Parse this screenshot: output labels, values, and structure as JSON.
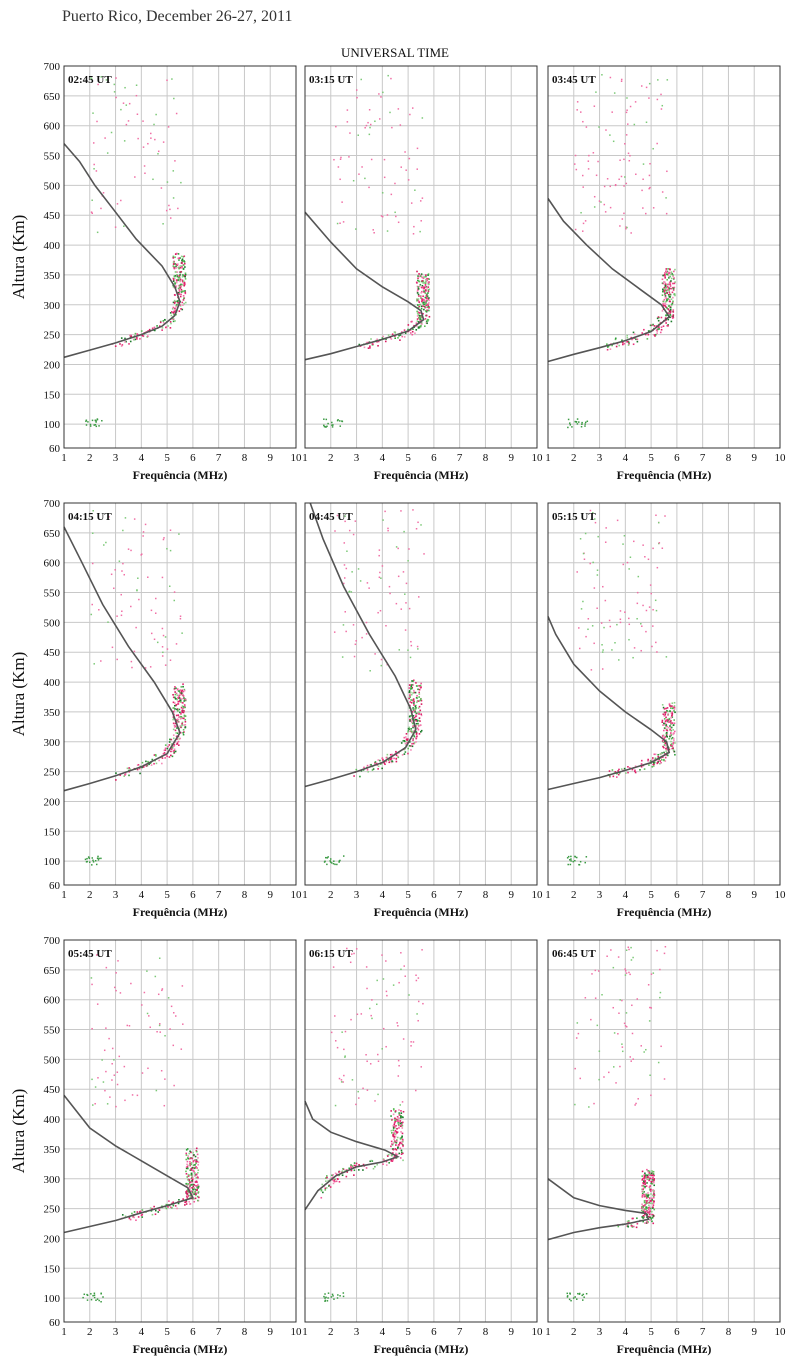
{
  "figure": {
    "title": "Puerto Rico, December 26-27, 2011",
    "subtitle": "UNIVERSAL TIME"
  },
  "chart_data": [
    {
      "type": "scatter",
      "title": "02:45 UT",
      "xlabel": "Frequência (MHz)",
      "ylabel": "Altura (Km)",
      "xlim": [
        1,
        10
      ],
      "ylim": [
        60,
        700
      ],
      "xticks": [
        1,
        2,
        3,
        4,
        5,
        6,
        7,
        8,
        9,
        10
      ],
      "yticks": [
        60,
        100,
        150,
        200,
        250,
        300,
        350,
        400,
        450,
        500,
        550,
        600,
        650,
        700
      ],
      "grid": true,
      "profile": [
        [
          1,
          212
        ],
        [
          2,
          224
        ],
        [
          3,
          236
        ],
        [
          4,
          250
        ],
        [
          4.8,
          264
        ],
        [
          5.3,
          282
        ],
        [
          5.5,
          305
        ],
        [
          5.3,
          330
        ],
        [
          4.8,
          365
        ],
        [
          3.8,
          410
        ],
        [
          3,
          455
        ],
        [
          2.2,
          500
        ],
        [
          1.6,
          540
        ],
        [
          1,
          570
        ]
      ]
    },
    {
      "type": "scatter",
      "title": "03:15 UT",
      "xlabel": "Frequência (MHz)",
      "ylabel": "",
      "xlim": [
        1,
        10
      ],
      "ylim": [
        60,
        700
      ],
      "xticks": [
        1,
        2,
        3,
        4,
        5,
        6,
        7,
        8,
        9,
        10
      ],
      "yticks": [],
      "grid": true,
      "profile": [
        [
          1,
          208
        ],
        [
          2,
          218
        ],
        [
          3,
          230
        ],
        [
          4,
          242
        ],
        [
          5,
          256
        ],
        [
          5.6,
          275
        ],
        [
          5.5,
          290
        ],
        [
          5,
          305
        ],
        [
          4,
          330
        ],
        [
          3,
          360
        ],
        [
          2,
          405
        ],
        [
          1,
          455
        ]
      ]
    },
    {
      "type": "scatter",
      "title": "03:45 UT",
      "xlabel": "Frequência (MHz)",
      "ylabel": "",
      "xlim": [
        1,
        10
      ],
      "ylim": [
        60,
        700
      ],
      "xticks": [
        1,
        2,
        3,
        4,
        5,
        6,
        7,
        8,
        9,
        10
      ],
      "yticks": [],
      "grid": true,
      "profile": [
        [
          1,
          205
        ],
        [
          2,
          217
        ],
        [
          3,
          228
        ],
        [
          4,
          240
        ],
        [
          5,
          255
        ],
        [
          5.7,
          280
        ],
        [
          5.4,
          300
        ],
        [
          4.6,
          325
        ],
        [
          3.5,
          360
        ],
        [
          2.5,
          400
        ],
        [
          1.6,
          440
        ],
        [
          1,
          478
        ]
      ]
    },
    {
      "type": "scatter",
      "title": "04:15 UT",
      "xlabel": "Frequência (MHz)",
      "ylabel": "Altura (Km)",
      "xlim": [
        1,
        10
      ],
      "ylim": [
        60,
        700
      ],
      "xticks": [
        1,
        2,
        3,
        4,
        5,
        6,
        7,
        8,
        9,
        10
      ],
      "yticks": [
        60,
        100,
        150,
        200,
        250,
        300,
        350,
        400,
        450,
        500,
        550,
        600,
        650,
        700
      ],
      "grid": true,
      "profile": [
        [
          1,
          218
        ],
        [
          2,
          230
        ],
        [
          3,
          243
        ],
        [
          4,
          258
        ],
        [
          5,
          280
        ],
        [
          5.5,
          315
        ],
        [
          5.2,
          350
        ],
        [
          4.5,
          400
        ],
        [
          3.5,
          460
        ],
        [
          2.5,
          530
        ],
        [
          1.7,
          600
        ],
        [
          1,
          660
        ]
      ]
    },
    {
      "type": "scatter",
      "title": "04:45 UT",
      "xlabel": "Frequência (MHz)",
      "ylabel": "",
      "xlim": [
        1,
        10
      ],
      "ylim": [
        60,
        700
      ],
      "xticks": [
        1,
        2,
        3,
        4,
        5,
        6,
        7,
        8,
        9,
        10
      ],
      "yticks": [],
      "grid": true,
      "profile": [
        [
          1,
          225
        ],
        [
          2,
          237
        ],
        [
          3,
          250
        ],
        [
          4,
          265
        ],
        [
          4.9,
          290
        ],
        [
          5.3,
          320
        ],
        [
          5.1,
          355
        ],
        [
          4.5,
          410
        ],
        [
          3.5,
          480
        ],
        [
          2.5,
          560
        ],
        [
          1.7,
          640
        ],
        [
          1.2,
          700
        ]
      ]
    },
    {
      "type": "scatter",
      "title": "05:15 UT",
      "xlabel": "Frequência (MHz)",
      "ylabel": "",
      "xlim": [
        1,
        10
      ],
      "ylim": [
        60,
        700
      ],
      "xticks": [
        1,
        2,
        3,
        4,
        5,
        6,
        7,
        8,
        9,
        10
      ],
      "yticks": [],
      "grid": true,
      "profile": [
        [
          1,
          220
        ],
        [
          2,
          230
        ],
        [
          3,
          240
        ],
        [
          4,
          252
        ],
        [
          5,
          265
        ],
        [
          5.7,
          282
        ],
        [
          5.6,
          300
        ],
        [
          5,
          320
        ],
        [
          4,
          350
        ],
        [
          3,
          385
        ],
        [
          2,
          430
        ],
        [
          1.3,
          480
        ],
        [
          1,
          510
        ]
      ]
    },
    {
      "type": "scatter",
      "title": "05:45 UT",
      "xlabel": "Frequência (MHz)",
      "ylabel": "Altura (Km)",
      "xlim": [
        1,
        10
      ],
      "ylim": [
        60,
        700
      ],
      "xticks": [
        1,
        2,
        3,
        4,
        5,
        6,
        7,
        8,
        9,
        10
      ],
      "yticks": [
        60,
        100,
        150,
        200,
        250,
        300,
        350,
        400,
        450,
        500,
        550,
        600,
        650,
        700
      ],
      "grid": true,
      "profile": [
        [
          1,
          210
        ],
        [
          2,
          220
        ],
        [
          3,
          230
        ],
        [
          4,
          243
        ],
        [
          5,
          255
        ],
        [
          6,
          268
        ],
        [
          5.8,
          285
        ],
        [
          5,
          305
        ],
        [
          4,
          330
        ],
        [
          3,
          355
        ],
        [
          2,
          385
        ],
        [
          1,
          440
        ]
      ]
    },
    {
      "type": "scatter",
      "title": "06:15 UT",
      "xlabel": "Frequência (MHz)",
      "ylabel": "",
      "xlim": [
        1,
        10
      ],
      "ylim": [
        60,
        700
      ],
      "xticks": [
        1,
        2,
        3,
        4,
        5,
        6,
        7,
        8,
        9,
        10
      ],
      "yticks": [],
      "grid": true,
      "profile": [
        [
          1,
          248
        ],
        [
          1.5,
          280
        ],
        [
          2.2,
          305
        ],
        [
          3,
          320
        ],
        [
          4,
          328
        ],
        [
          4.6,
          337
        ],
        [
          4.1,
          348
        ],
        [
          3,
          362
        ],
        [
          2,
          378
        ],
        [
          1.3,
          400
        ],
        [
          1,
          430
        ]
      ]
    },
    {
      "type": "scatter",
      "title": "06:45 UT",
      "xlabel": "Frequência (MHz)",
      "ylabel": "",
      "xlim": [
        1,
        10
      ],
      "ylim": [
        60,
        700
      ],
      "xticks": [
        1,
        2,
        3,
        4,
        5,
        6,
        7,
        8,
        9,
        10
      ],
      "yticks": [],
      "grid": true,
      "profile": [
        [
          1,
          198
        ],
        [
          2,
          210
        ],
        [
          3,
          218
        ],
        [
          4,
          224
        ],
        [
          4.9,
          232
        ],
        [
          4.8,
          242
        ],
        [
          4,
          247
        ],
        [
          3,
          255
        ],
        [
          2,
          268
        ],
        [
          1,
          300
        ]
      ]
    }
  ]
}
